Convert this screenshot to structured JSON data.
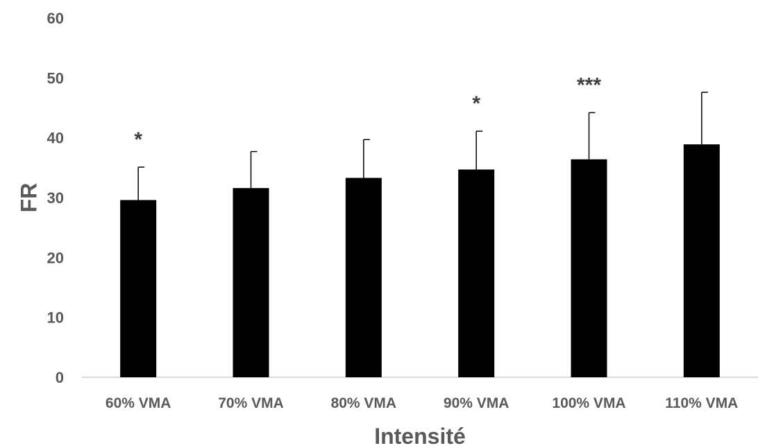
{
  "chart_data": {
    "type": "bar",
    "title": "",
    "xlabel": "Intensité",
    "ylabel": "FR",
    "ylim": [
      0,
      60
    ],
    "yticks": [
      0,
      10,
      20,
      30,
      40,
      50,
      60
    ],
    "grid": false,
    "legend": "none",
    "bar_color": "#000000",
    "categories": [
      "60% VMA",
      "70% VMA",
      "80% VMA",
      "90% VMA",
      "100% VMA",
      "110% VMA"
    ],
    "values": [
      29.6,
      31.6,
      33.3,
      34.7,
      36.4,
      38.9
    ],
    "error_plus": [
      5.5,
      6.1,
      6.4,
      6.4,
      7.8,
      8.7
    ],
    "annotations": [
      "*",
      "",
      "",
      "*",
      "***",
      ""
    ]
  }
}
